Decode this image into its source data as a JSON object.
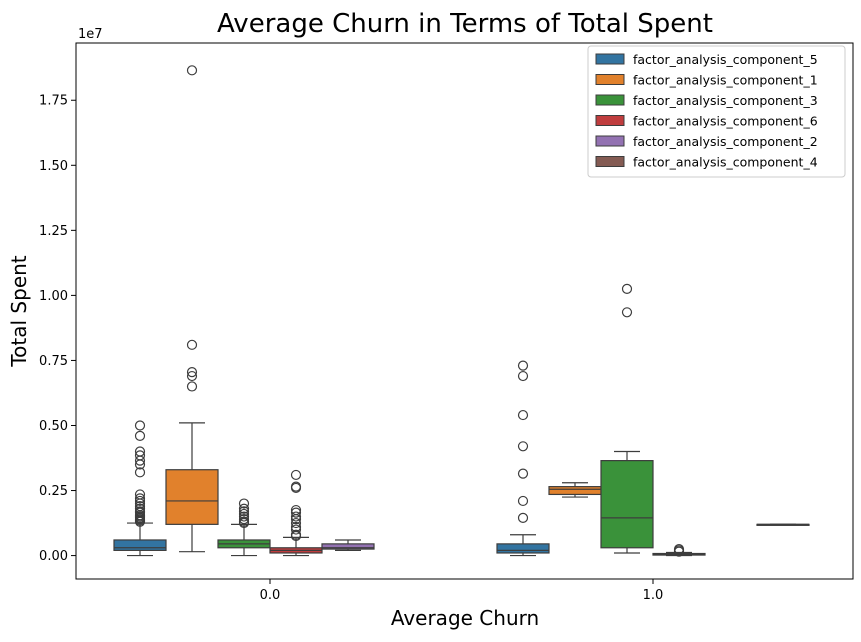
{
  "chart_data": {
    "type": "box",
    "title": "Average Churn in Terms of Total Spent",
    "xlabel": "Average Churn",
    "ylabel": "Total Spent",
    "y_offset_label": "1e7",
    "categories": [
      "0.0",
      "1.0"
    ],
    "ylim": [
      -0.09,
      1.97
    ],
    "y_ticks": [
      0.0,
      0.25,
      0.5,
      0.75,
      1.0,
      1.25,
      1.5,
      1.75
    ],
    "y_tick_labels": [
      "0.00",
      "0.25",
      "0.50",
      "0.75",
      "1.00",
      "1.25",
      "1.50",
      "1.75"
    ],
    "legend_position": "top-right",
    "grid": false,
    "series": [
      {
        "name": "factor_analysis_component_5",
        "color": "#3274a1",
        "boxes": [
          {
            "category": "0.0",
            "whisker_low": 0.0,
            "q1": 0.02,
            "median": 0.03,
            "q3": 0.06,
            "whisker_high": 0.125,
            "outliers": [
              0.13,
              0.135,
              0.14,
              0.145,
              0.15,
              0.155,
              0.165,
              0.17,
              0.18,
              0.19,
              0.2,
              0.21,
              0.22,
              0.235,
              0.32,
              0.35,
              0.365,
              0.385,
              0.4,
              0.46,
              0.5
            ]
          },
          {
            "category": "1.0",
            "whisker_low": 0.0,
            "q1": 0.01,
            "median": 0.02,
            "q3": 0.045,
            "whisker_high": 0.08,
            "outliers": [
              0.145,
              0.21,
              0.315,
              0.42,
              0.54,
              0.69,
              0.73
            ]
          }
        ]
      },
      {
        "name": "factor_analysis_component_1",
        "color": "#e1812c",
        "boxes": [
          {
            "category": "0.0",
            "whisker_low": 0.015,
            "q1": 0.12,
            "median": 0.21,
            "q3": 0.33,
            "whisker_high": 0.51,
            "outliers": [
              0.65,
              0.69,
              0.705,
              0.81,
              1.865
            ]
          },
          {
            "category": "1.0",
            "whisker_low": 0.225,
            "q1": 0.235,
            "median": 0.255,
            "q3": 0.265,
            "whisker_high": 0.28,
            "outliers": []
          }
        ]
      },
      {
        "name": "factor_analysis_component_3",
        "color": "#3a923a",
        "boxes": [
          {
            "category": "0.0",
            "whisker_low": 0.0,
            "q1": 0.03,
            "median": 0.045,
            "q3": 0.06,
            "whisker_high": 0.12,
            "outliers": [
              0.125,
              0.13,
              0.14,
              0.15,
              0.16,
              0.17,
              0.18,
              0.2
            ]
          },
          {
            "category": "1.0",
            "whisker_low": 0.01,
            "q1": 0.03,
            "median": 0.145,
            "q3": 0.365,
            "whisker_high": 0.4,
            "outliers": [
              0.935,
              1.025
            ]
          }
        ]
      },
      {
        "name": "factor_analysis_component_6",
        "color": "#c03d3e",
        "boxes": [
          {
            "category": "0.0",
            "whisker_low": 0.0,
            "q1": 0.01,
            "median": 0.02,
            "q3": 0.03,
            "whisker_high": 0.07,
            "outliers": [
              0.075,
              0.08,
              0.1,
              0.11,
              0.125,
              0.14,
              0.15,
              0.165,
              0.175,
              0.26,
              0.265,
              0.31
            ]
          },
          {
            "category": "1.0",
            "whisker_low": 0.0,
            "q1": 0.002,
            "median": 0.004,
            "q3": 0.008,
            "whisker_high": 0.012,
            "outliers": [
              0.015,
              0.02,
              0.025
            ]
          }
        ]
      },
      {
        "name": "factor_analysis_component_2",
        "color": "#9372b2",
        "boxes": [
          {
            "category": "0.0",
            "whisker_low": 0.02,
            "q1": 0.025,
            "median": 0.03,
            "q3": 0.045,
            "whisker_high": 0.06,
            "outliers": []
          }
        ]
      },
      {
        "name": "factor_analysis_component_4",
        "color": "#845b53",
        "boxes": [
          {
            "category": "1.0",
            "whisker_low": 0.12,
            "q1": 0.12,
            "median": 0.12,
            "q3": 0.12,
            "whisker_high": 0.12,
            "outliers": []
          }
        ]
      }
    ]
  }
}
